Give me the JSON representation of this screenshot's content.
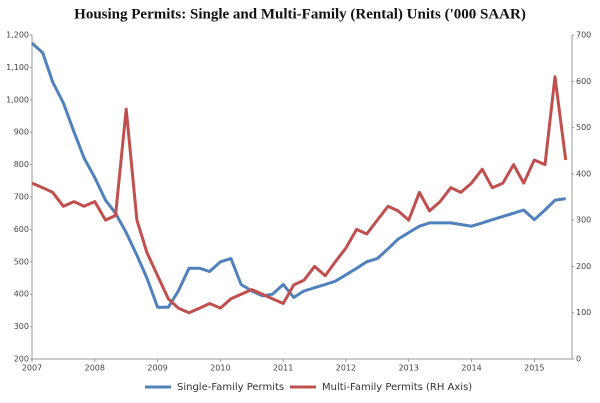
{
  "chart_data": {
    "type": "line",
    "title": "Housing Permits: Single and Multi-Family (Rental) Units ('000 SAAR)",
    "x": [
      2007,
      2007.17,
      2007.33,
      2007.5,
      2007.67,
      2007.83,
      2008,
      2008.17,
      2008.33,
      2008.5,
      2008.67,
      2008.83,
      2009,
      2009.17,
      2009.33,
      2009.5,
      2009.67,
      2009.83,
      2010,
      2010.17,
      2010.33,
      2010.5,
      2010.67,
      2010.83,
      2011,
      2011.17,
      2011.33,
      2011.5,
      2011.67,
      2011.83,
      2012,
      2012.17,
      2012.33,
      2012.5,
      2012.67,
      2012.83,
      2013,
      2013.17,
      2013.33,
      2013.5,
      2013.67,
      2013.83,
      2014,
      2014.17,
      2014.33,
      2014.5,
      2014.67,
      2014.83,
      2015,
      2015.17,
      2015.33,
      2015.5
    ],
    "xlim": [
      2007,
      2015.6
    ],
    "xticks": [
      2007,
      2008,
      2009,
      2010,
      2011,
      2012,
      2013,
      2014,
      2015
    ],
    "ylim": [
      200,
      1200
    ],
    "yticks": [
      200,
      300,
      400,
      500,
      600,
      700,
      800,
      900,
      {
        "value": 1000,
        "label": "1,000"
      },
      {
        "value": 1100,
        "label": "1,100"
      },
      {
        "value": 1200,
        "label": "1,200"
      }
    ],
    "y2lim": [
      0,
      700
    ],
    "y2ticks": [
      0,
      100,
      200,
      300,
      400,
      500,
      600,
      700
    ],
    "grid": false,
    "legend": "bottom",
    "series": [
      {
        "name": "Single-Family Permits",
        "color": "#4f81bd",
        "values": [
          1175,
          1145,
          1055,
          990,
          900,
          820,
          760,
          690,
          650,
          590,
          520,
          450,
          360,
          360,
          410,
          480,
          480,
          470,
          500,
          510,
          430,
          410,
          395,
          400,
          430,
          390,
          410,
          420,
          430,
          440,
          460,
          480,
          500,
          510,
          540,
          570,
          590,
          610,
          620,
          620,
          620,
          615,
          610,
          620,
          630,
          640,
          650,
          660,
          630,
          660,
          690,
          695
        ]
      },
      {
        "name": "Multi-Family Permits (RH Axis)",
        "color": "#c0504d",
        "axis": "y2",
        "values": [
          380,
          370,
          360,
          330,
          340,
          330,
          340,
          300,
          310,
          540,
          300,
          230,
          180,
          130,
          110,
          100,
          110,
          120,
          110,
          130,
          140,
          150,
          140,
          130,
          120,
          160,
          170,
          200,
          180,
          210,
          240,
          280,
          270,
          300,
          330,
          320,
          300,
          360,
          320,
          340,
          370,
          360,
          380,
          410,
          370,
          380,
          420,
          380,
          430,
          420,
          610,
          430
        ]
      }
    ]
  }
}
